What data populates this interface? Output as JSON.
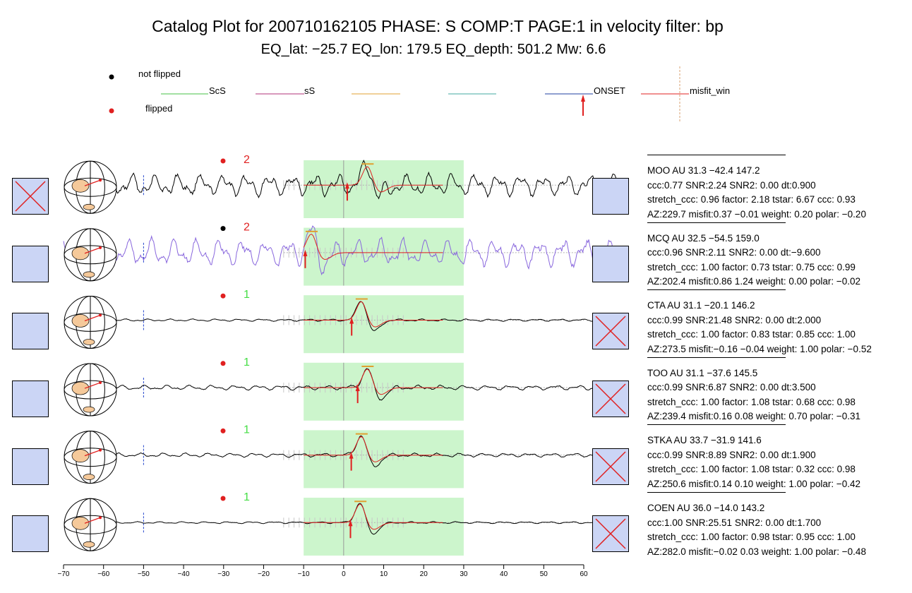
{
  "title": "Catalog Plot for 200710162105 PHASE: S COMP:T PAGE:1 in velocity filter: bp",
  "subtitle": "EQ_lat: −25.7 EQ_lon: 179.5 EQ_depth: 501.2 Mw: 6.6",
  "legend": {
    "not_flipped": "not flipped",
    "flipped": "flipped",
    "scs": "ScS",
    "ss": "sS",
    "onset": "ONSET",
    "misfit_win": "misfit_win",
    "colors": {
      "scs": "#44c044",
      "ss": "#b0307a",
      "orange": "#e0a030",
      "teal": "#40a8a0",
      "onset": "#1f3fa0",
      "misfit": "#e02020"
    }
  },
  "chart_data": {
    "type": "line",
    "xlim": [
      -70,
      70
    ],
    "xticks": [
      -70,
      -60,
      -50,
      -40,
      -30,
      -20,
      -10,
      0,
      10,
      20,
      30,
      40,
      50,
      60
    ],
    "window": [
      -10,
      30
    ],
    "blue_marker_x": -50,
    "traces": [
      {
        "station": "MOO AU 31.3 −42.4 147.2",
        "line2": "ccc:0.77 SNR:2.24 SNR2: 0.00  dt:0.900",
        "line3": "stretch_ccc: 0.96 factor: 2.18 tstar: 6.67 ccc: 0.93",
        "line4": "AZ:229.7 misfit:0.37 −0.01 weight: 0.20 polar: −0.20",
        "flip": "flipped",
        "count": "2",
        "count_color": "#e02020",
        "color": "#000000",
        "left_x": true,
        "right_x": false,
        "onset": 0.9,
        "noise": 0.55,
        "peak": 6
      },
      {
        "station": "MCQ AU 32.5 −54.5 159.0",
        "line2": "ccc:0.96 SNR:2.11 SNR2: 0.00  dt:−9.600",
        "line3": "stretch_ccc: 1.00 factor: 0.73 tstar: 0.75 ccc: 0.99",
        "line4": "AZ:202.4 misfit:0.86 1.24 weight: 0.00 polar: −0.02",
        "flip": "not flipped",
        "count": "2",
        "count_color": "#e02020",
        "color": "#8866dd",
        "left_x": false,
        "right_x": false,
        "onset": -9.6,
        "noise": 0.7,
        "peak": -8
      },
      {
        "station": "CTA AU 31.1 −20.1 146.2",
        "line2": "ccc:0.99 SNR:21.48 SNR2: 0.00  dt:2.000",
        "line3": "stretch_ccc: 1.00 factor: 0.83 tstar: 0.85 ccc: 1.00",
        "line4": "AZ:273.5 misfit:−0.16 −0.04 weight: 1.00 polar: −0.52",
        "flip": "flipped",
        "count": "1",
        "count_color": "#44dd44",
        "color": "#000000",
        "left_x": false,
        "right_x": true,
        "onset": 2.0,
        "noise": 0.06,
        "peak": 4.5
      },
      {
        "station": "TOO AU 31.1 −37.6 145.5",
        "line2": "ccc:0.99 SNR:6.87 SNR2: 0.00  dt:3.500",
        "line3": "stretch_ccc: 1.00 factor: 1.08 tstar: 0.68 ccc: 0.98",
        "line4": "AZ:239.4 misfit:0.16 0.08 weight: 0.70 polar: −0.31",
        "flip": "flipped",
        "count": "1",
        "count_color": "#44dd44",
        "color": "#000000",
        "left_x": false,
        "right_x": true,
        "onset": 3.5,
        "noise": 0.12,
        "peak": 6
      },
      {
        "station": "STKA AU 33.7 −31.9 141.6",
        "line2": "ccc:0.99 SNR:8.89 SNR2: 0.00  dt:1.900",
        "line3": "stretch_ccc: 1.00 factor: 1.08 tstar: 0.32 ccc: 0.98",
        "line4": "AZ:250.6 misfit:0.14 0.10 weight: 1.00 polar: −0.42",
        "flip": "flipped",
        "count": "1",
        "count_color": "#44dd44",
        "color": "#000000",
        "left_x": false,
        "right_x": true,
        "onset": 1.9,
        "noise": 0.1,
        "peak": 4.5
      },
      {
        "station": "COEN AU 36.0 −14.0 143.2",
        "line2": "ccc:1.00 SNR:25.51 SNR2: 0.00  dt:1.700",
        "line3": "stretch_ccc: 1.00 factor: 0.98 tstar: 0.95 ccc: 1.00",
        "line4": "AZ:282.0 misfit:−0.02 0.03 weight: 1.00 polar: −0.48",
        "flip": "flipped",
        "count": "1",
        "count_color": "#44dd44",
        "color": "#000000",
        "left_x": false,
        "right_x": true,
        "onset": 1.7,
        "noise": 0.05,
        "peak": 4.2
      }
    ]
  }
}
